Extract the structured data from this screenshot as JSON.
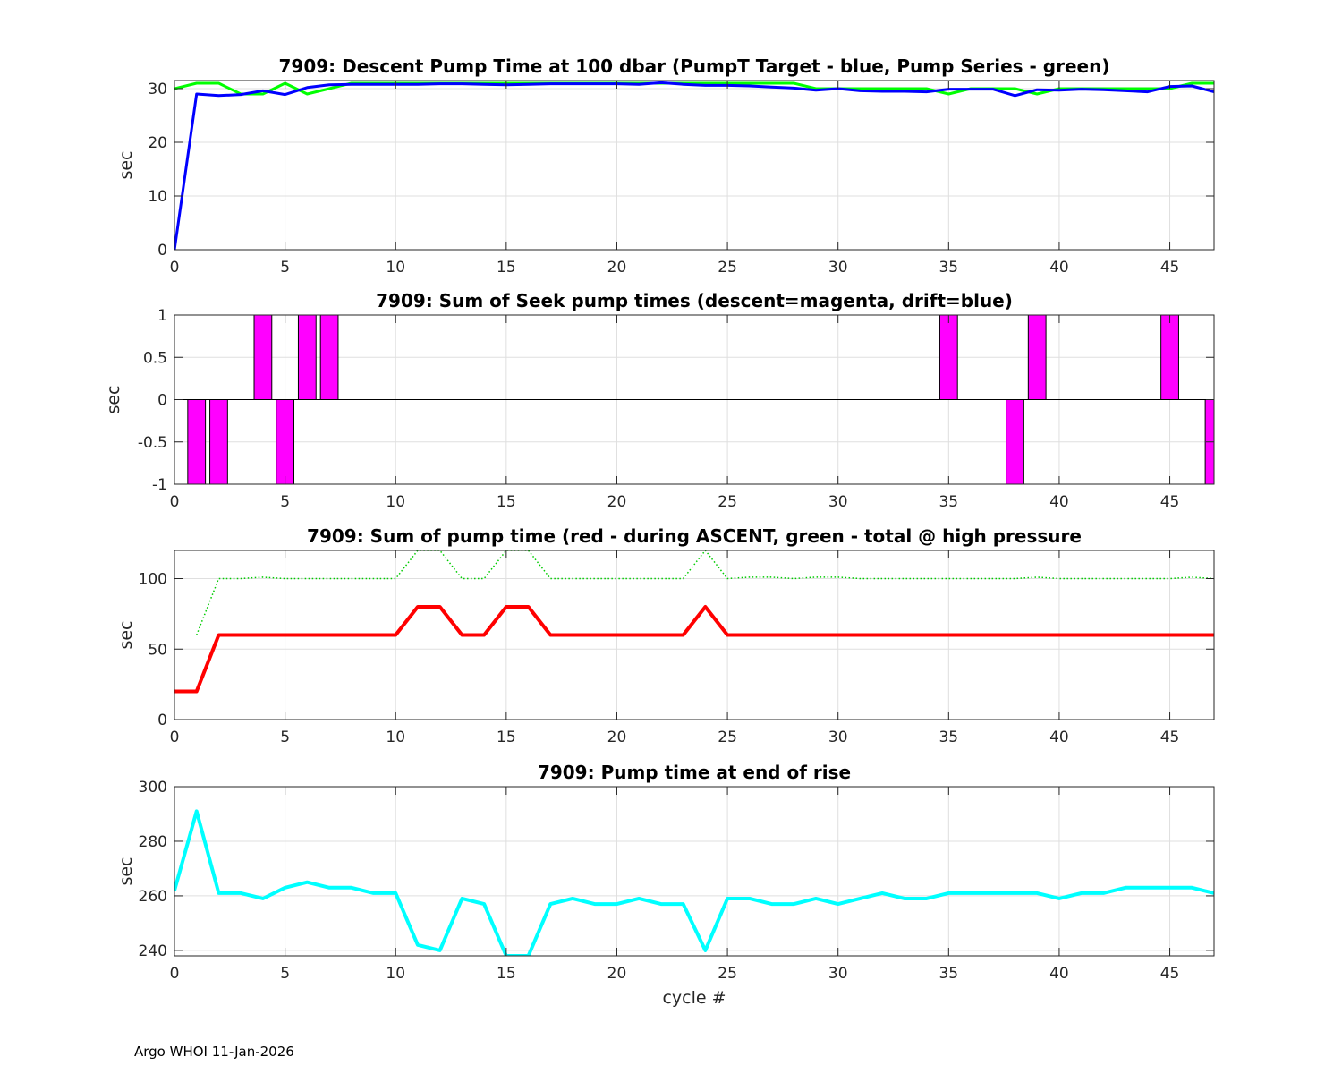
{
  "footer": "Argo WHOI 11-Jan-2026",
  "chart_data": [
    {
      "id": "descent",
      "type": "line",
      "title": "7909: Descent Pump Time at 100 dbar (PumpT Target - blue, Pump Series - green)",
      "ylabel": "sec",
      "xlabel": "",
      "xlim": [
        0,
        47
      ],
      "ylim": [
        0,
        31.5
      ],
      "xticks": [
        0,
        5,
        10,
        15,
        20,
        25,
        30,
        35,
        40,
        45
      ],
      "yticks": [
        0,
        10,
        20,
        30
      ],
      "grid": true,
      "series": [
        {
          "color": "#00ff00",
          "style": "solid",
          "width": 3,
          "x": [
            0,
            1,
            2,
            3,
            4,
            5,
            6,
            7,
            8,
            9,
            10,
            11,
            12,
            13,
            14,
            15,
            16,
            17,
            18,
            19,
            20,
            21,
            22,
            23,
            24,
            25,
            26,
            27,
            28,
            29,
            30,
            31,
            32,
            33,
            34,
            35,
            36,
            37,
            38,
            39,
            40,
            41,
            42,
            43,
            44,
            45,
            46,
            47
          ],
          "y": [
            30,
            31,
            31,
            29,
            29,
            31,
            29,
            30,
            31,
            31,
            31,
            31,
            31,
            31,
            31,
            31,
            31,
            31,
            31,
            31,
            31,
            31,
            31,
            31,
            31,
            31,
            31,
            31,
            31,
            30,
            30,
            30,
            30,
            30,
            30,
            29,
            30,
            30,
            30,
            29,
            30,
            30,
            30,
            30,
            30,
            30,
            31,
            31
          ]
        },
        {
          "color": "#0000ff",
          "style": "solid",
          "width": 3,
          "x": [
            0,
            1,
            2,
            3,
            4,
            5,
            6,
            7,
            8,
            9,
            10,
            11,
            12,
            13,
            14,
            15,
            16,
            17,
            18,
            19,
            20,
            21,
            22,
            23,
            24,
            25,
            26,
            27,
            28,
            29,
            30,
            31,
            32,
            33,
            34,
            35,
            36,
            37,
            38,
            39,
            40,
            41,
            42,
            43,
            44,
            45,
            46,
            47
          ],
          "y": [
            0,
            29,
            28.7,
            28.9,
            29.6,
            28.9,
            30.2,
            30.7,
            30.8,
            30.8,
            30.8,
            30.8,
            30.9,
            30.9,
            30.8,
            30.7,
            30.8,
            30.9,
            30.9,
            30.9,
            30.9,
            30.8,
            31.1,
            30.8,
            30.6,
            30.6,
            30.5,
            30.3,
            30.1,
            29.7,
            30,
            29.6,
            29.5,
            29.5,
            29.4,
            29.9,
            29.9,
            29.9,
            28.7,
            29.8,
            29.7,
            29.9,
            29.8,
            29.6,
            29.4,
            30.4,
            30.5,
            29.4
          ]
        }
      ]
    },
    {
      "id": "seek",
      "type": "bar",
      "title": "7909: Sum of Seek pump times (descent=magenta, drift=blue)",
      "ylabel": "sec",
      "xlabel": "",
      "xlim": [
        0,
        47
      ],
      "ylim": [
        -1,
        1
      ],
      "xticks": [
        0,
        5,
        10,
        15,
        20,
        25,
        30,
        35,
        40,
        45
      ],
      "yticks": [
        -1,
        -0.5,
        0,
        0.5,
        1
      ],
      "grid": true,
      "bar_width": 0.8,
      "series": [
        {
          "color": "#ff00ff",
          "x": [
            1,
            2,
            4,
            5,
            6,
            7,
            35,
            38,
            39,
            45,
            47
          ],
          "values": [
            -1,
            -1,
            1,
            -1,
            1,
            1,
            1,
            -1,
            1,
            1,
            -1
          ]
        }
      ]
    },
    {
      "id": "ascent",
      "type": "line",
      "title": "7909: Sum of pump time (red - during ASCENT, green - total @ high pressure",
      "ylabel": "sec",
      "xlabel": "",
      "xlim": [
        0,
        47
      ],
      "ylim": [
        0,
        120
      ],
      "xticks": [
        0,
        5,
        10,
        15,
        20,
        25,
        30,
        35,
        40,
        45
      ],
      "yticks": [
        0,
        50,
        100
      ],
      "grid": true,
      "series": [
        {
          "color": "#00cc00",
          "style": "dotted",
          "width": 1.5,
          "x": [
            1,
            2,
            3,
            4,
            5,
            6,
            7,
            8,
            9,
            10,
            11,
            12,
            13,
            14,
            15,
            16,
            17,
            18,
            19,
            20,
            21,
            22,
            23,
            24,
            25,
            26,
            27,
            28,
            29,
            30,
            31,
            32,
            33,
            34,
            35,
            36,
            37,
            38,
            39,
            40,
            41,
            42,
            43,
            44,
            45,
            46,
            47
          ],
          "y": [
            60,
            100,
            100,
            101,
            100,
            100,
            100,
            100,
            100,
            100,
            120,
            120,
            100,
            100,
            120,
            120,
            100,
            100,
            100,
            100,
            100,
            100,
            100,
            120,
            100,
            101,
            101,
            100,
            101,
            101,
            100,
            100,
            100,
            100,
            100,
            100,
            100,
            100,
            101,
            100,
            100,
            100,
            100,
            100,
            100,
            101,
            100
          ]
        },
        {
          "color": "#ff0000",
          "style": "solid",
          "width": 4,
          "x": [
            0,
            1,
            2,
            3,
            4,
            5,
            6,
            7,
            8,
            9,
            10,
            11,
            12,
            13,
            14,
            15,
            16,
            17,
            18,
            19,
            20,
            21,
            22,
            23,
            24,
            25,
            26,
            27,
            28,
            29,
            30,
            31,
            32,
            33,
            34,
            35,
            36,
            37,
            38,
            39,
            40,
            41,
            42,
            43,
            44,
            45,
            46,
            47
          ],
          "y": [
            20,
            20,
            60,
            60,
            60,
            60,
            60,
            60,
            60,
            60,
            60,
            80,
            80,
            60,
            60,
            80,
            80,
            60,
            60,
            60,
            60,
            60,
            60,
            60,
            80,
            60,
            60,
            60,
            60,
            60,
            60,
            60,
            60,
            60,
            60,
            60,
            60,
            60,
            60,
            60,
            60,
            60,
            60,
            60,
            60,
            60,
            60,
            60
          ]
        }
      ]
    },
    {
      "id": "rise",
      "type": "line",
      "title": "7909: Pump time at end of rise",
      "ylabel": "sec",
      "xlabel": "cycle #",
      "xlim": [
        0,
        47
      ],
      "ylim": [
        238,
        300
      ],
      "xticks": [
        0,
        5,
        10,
        15,
        20,
        25,
        30,
        35,
        40,
        45
      ],
      "yticks": [
        240,
        260,
        280,
        300
      ],
      "grid": true,
      "series": [
        {
          "color": "#00ffff",
          "style": "solid",
          "width": 4,
          "x": [
            0,
            1,
            2,
            3,
            4,
            5,
            6,
            7,
            8,
            9,
            10,
            11,
            12,
            13,
            14,
            15,
            16,
            17,
            18,
            19,
            20,
            21,
            22,
            23,
            24,
            25,
            26,
            27,
            28,
            29,
            30,
            31,
            32,
            33,
            34,
            35,
            36,
            37,
            38,
            39,
            40,
            41,
            42,
            43,
            44,
            45,
            46,
            47
          ],
          "y": [
            262,
            291,
            261,
            261,
            259,
            263,
            265,
            263,
            263,
            261,
            261,
            242,
            240,
            259,
            257,
            238,
            238,
            257,
            259,
            257,
            257,
            259,
            257,
            257,
            240,
            259,
            259,
            257,
            257,
            259,
            257,
            259,
            261,
            259,
            259,
            261,
            261,
            261,
            261,
            261,
            259,
            261,
            261,
            263,
            263,
            263,
            263,
            261
          ]
        }
      ]
    }
  ]
}
